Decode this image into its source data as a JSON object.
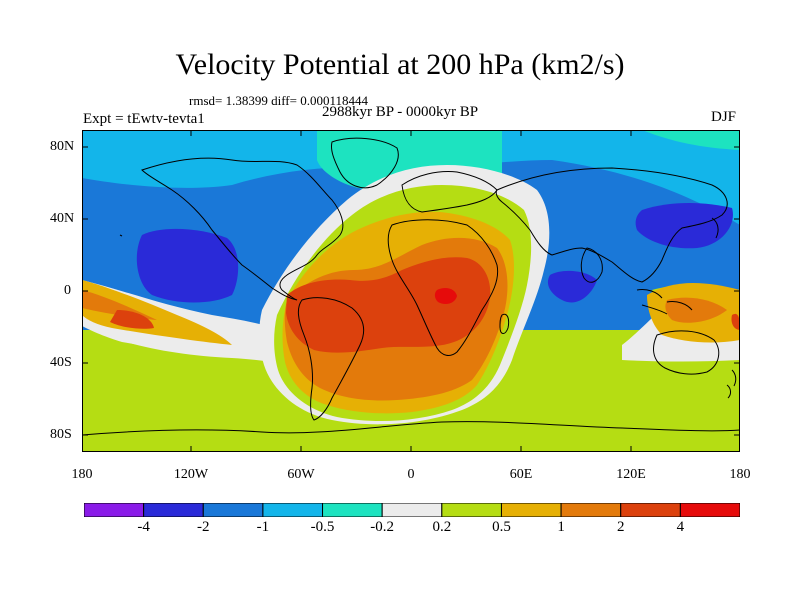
{
  "title": "Velocity Potential at 200 hPa (km2/s)",
  "stats": "rmsd= 1.38399 diff= 0.000118444",
  "experiment": "Expt = tEwtv-tevta1",
  "period": "2988kyr BP - 0000kyr BP",
  "season": "DJF",
  "map": {
    "projection": "cylindrical equidistant",
    "lat_ticks": [
      "80N",
      "40N",
      "0",
      "40S",
      "80S"
    ],
    "lon_ticks": [
      "180",
      "120W",
      "60W",
      "0",
      "60E",
      "120E",
      "180"
    ]
  },
  "colorbar": {
    "labels": [
      "-4",
      "-2",
      "-1",
      "-0.5",
      "-0.2",
      "0.2",
      "0.5",
      "1",
      "2",
      "4"
    ],
    "colors": [
      "#8a1be8",
      "#2a2ad8",
      "#1a78d8",
      "#13b5ea",
      "#1de3c0",
      "#ececec",
      "#b5dd13",
      "#e6b005",
      "#e37a0b",
      "#dc410d",
      "#e60b0b"
    ]
  }
}
